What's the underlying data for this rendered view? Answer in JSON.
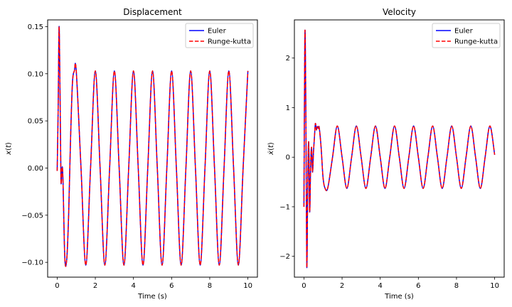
{
  "chart_data": [
    {
      "type": "line",
      "title": "Displacement",
      "xlabel": "Time (s)",
      "ylabel": "x(t)",
      "xlim": [
        -0.5,
        10.5
      ],
      "ylim": [
        -0.1157,
        0.1571
      ],
      "xticks": [
        0,
        2,
        4,
        6,
        8,
        10
      ],
      "yticks": [
        -0.1,
        -0.05,
        0.0,
        0.05,
        0.1,
        0.15
      ],
      "ytick_labels": [
        "−0.10",
        "−0.05",
        "0.00",
        "0.05",
        "0.10",
        "0.15"
      ],
      "grid": false,
      "legend": "top-right",
      "series": [
        {
          "name": "Euler",
          "color": "#0000ff",
          "style": "solid",
          "x": [
            0,
            0.05,
            0.1,
            0.15,
            0.2,
            0.25,
            0.3,
            0.4,
            0.5,
            0.6,
            0.7,
            0.8,
            0.9,
            1.0,
            1.25,
            1.5,
            1.75,
            2.0,
            2.25,
            2.5,
            2.75,
            3.0,
            3.25,
            3.5,
            3.75,
            4.0,
            4.25,
            4.5,
            4.75,
            5.0,
            5.25,
            5.5,
            5.75,
            6.0,
            6.25,
            6.5,
            6.75,
            7.0,
            7.25,
            7.5,
            7.75,
            8.0,
            8.25,
            8.5,
            8.75,
            9.0,
            9.25,
            9.5,
            9.75,
            10.0
          ],
          "y": [
            -0.003,
            0.06,
            0.15,
            0.08,
            -0.013,
            0.0,
            -0.01,
            -0.095,
            -0.097,
            -0.05,
            0.03,
            0.09,
            0.103,
            0.103,
            0.0,
            -0.103,
            0.0,
            0.103,
            0.0,
            -0.103,
            0.0,
            0.103,
            0.0,
            -0.103,
            0.0,
            0.103,
            0.0,
            -0.103,
            0.0,
            0.103,
            0.0,
            -0.103,
            0.0,
            0.103,
            0.0,
            -0.103,
            0.0,
            0.103,
            0.0,
            -0.103,
            0.0,
            0.103,
            0.0,
            -0.103,
            0.0,
            0.103,
            0.0,
            -0.103,
            0.0,
            0.103
          ]
        },
        {
          "name": "Runge-kutta",
          "color": "#ff0000",
          "style": "dashed",
          "x": [
            0,
            0.05,
            0.1,
            0.15,
            0.2,
            0.25,
            0.3,
            0.4,
            0.5,
            0.6,
            0.7,
            0.8,
            0.9,
            1.0,
            1.25,
            1.5,
            1.75,
            2.0,
            2.25,
            2.5,
            2.75,
            3.0,
            3.25,
            3.5,
            3.75,
            4.0,
            4.25,
            4.5,
            4.75,
            5.0,
            5.25,
            5.5,
            5.75,
            6.0,
            6.25,
            6.5,
            6.75,
            7.0,
            7.25,
            7.5,
            7.75,
            8.0,
            8.25,
            8.5,
            8.75,
            9.0,
            9.25,
            9.5,
            9.75,
            10.0
          ],
          "y": [
            -0.003,
            0.06,
            0.15,
            0.08,
            -0.013,
            0.0,
            -0.01,
            -0.095,
            -0.097,
            -0.05,
            0.03,
            0.09,
            0.103,
            0.103,
            0.0,
            -0.103,
            0.0,
            0.103,
            0.0,
            -0.103,
            0.0,
            0.103,
            0.0,
            -0.103,
            0.0,
            0.103,
            0.0,
            -0.103,
            0.0,
            0.103,
            0.0,
            -0.103,
            0.0,
            0.103,
            0.0,
            -0.103,
            0.0,
            0.103,
            0.0,
            -0.103,
            0.0,
            0.103,
            0.0,
            -0.103,
            0.0,
            0.103,
            0.0,
            -0.103,
            0.0,
            0.103
          ]
        }
      ]
    },
    {
      "type": "line",
      "title": "Velocity",
      "xlabel": "Time (s)",
      "ylabel": "ẋ(t)",
      "xlim": [
        -0.5,
        10.5
      ],
      "ylim": [
        -2.42,
        2.77
      ],
      "xticks": [
        0,
        2,
        4,
        6,
        8,
        10
      ],
      "yticks": [
        -2,
        -1,
        0,
        1,
        2
      ],
      "ytick_labels": [
        "−2",
        "−1",
        "0",
        "1",
        "2"
      ],
      "grid": false,
      "legend": "top-right",
      "series": [
        {
          "name": "Euler",
          "color": "#0000ff",
          "style": "solid",
          "x": [
            0,
            0.05,
            0.1,
            0.15,
            0.2,
            0.25,
            0.3,
            0.35,
            0.4,
            0.45,
            0.5,
            0.55,
            0.6,
            0.65,
            0.7,
            0.75,
            0.8,
            0.9,
            1.0,
            1.1,
            1.25,
            1.5,
            1.75,
            2.0,
            2.25,
            2.5,
            2.75,
            3.0,
            3.25,
            3.5,
            3.75,
            4.0,
            4.25,
            4.5,
            4.75,
            5.0,
            5.25,
            5.5,
            5.75,
            6.0,
            6.25,
            6.5,
            6.75,
            7.0,
            7.25,
            7.5,
            7.75,
            8.0,
            8.25,
            8.5,
            8.75,
            9.0,
            9.25,
            9.5,
            9.75,
            10.0
          ],
          "y": [
            -1.0,
            2.5,
            1.0,
            -2.2,
            -0.5,
            0.3,
            -1.1,
            -0.2,
            0.2,
            -0.3,
            0.1,
            0.4,
            0.68,
            0.55,
            0.62,
            0.58,
            0.6,
            0.2,
            -0.4,
            -0.62,
            -0.62,
            0.0,
            0.63,
            0.0,
            -0.63,
            0.0,
            0.63,
            0.0,
            -0.63,
            0.0,
            0.63,
            0.0,
            -0.63,
            0.0,
            0.63,
            0.0,
            -0.63,
            0.0,
            0.63,
            0.0,
            -0.63,
            0.0,
            0.63,
            0.0,
            -0.63,
            0.0,
            0.63,
            0.0,
            -0.63,
            0.0,
            0.63,
            0.0,
            -0.63,
            0.0,
            0.63,
            0.05
          ]
        },
        {
          "name": "Runge-kutta",
          "color": "#ff0000",
          "style": "dashed",
          "x": [
            0,
            0.05,
            0.1,
            0.15,
            0.2,
            0.25,
            0.3,
            0.35,
            0.4,
            0.45,
            0.5,
            0.55,
            0.6,
            0.65,
            0.7,
            0.75,
            0.8,
            0.9,
            1.0,
            1.1,
            1.25,
            1.5,
            1.75,
            2.0,
            2.25,
            2.5,
            2.75,
            3.0,
            3.25,
            3.5,
            3.75,
            4.0,
            4.25,
            4.5,
            4.75,
            5.0,
            5.25,
            5.5,
            5.75,
            6.0,
            6.25,
            6.5,
            6.75,
            7.0,
            7.25,
            7.5,
            7.75,
            8.0,
            8.25,
            8.5,
            8.75,
            9.0,
            9.25,
            9.5,
            9.75,
            10.0
          ],
          "y": [
            -1.0,
            2.5,
            1.0,
            -2.2,
            -0.5,
            0.3,
            -1.1,
            -0.2,
            0.2,
            -0.3,
            0.1,
            0.4,
            0.68,
            0.55,
            0.62,
            0.58,
            0.6,
            0.2,
            -0.4,
            -0.62,
            -0.62,
            0.0,
            0.63,
            0.0,
            -0.63,
            0.0,
            0.63,
            0.0,
            -0.63,
            0.0,
            0.63,
            0.0,
            -0.63,
            0.0,
            0.63,
            0.0,
            -0.63,
            0.0,
            0.63,
            0.0,
            -0.63,
            0.0,
            0.63,
            0.0,
            -0.63,
            0.0,
            0.63,
            0.0,
            -0.63,
            0.0,
            0.63,
            0.0,
            -0.63,
            0.0,
            0.63,
            0.05
          ]
        }
      ]
    }
  ]
}
